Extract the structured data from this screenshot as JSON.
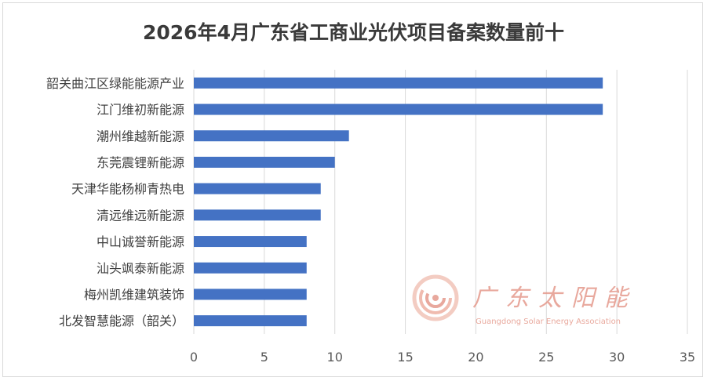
{
  "chart_data": {
    "type": "bar",
    "orientation": "horizontal",
    "title": "2026年4月广东省工商业光伏项目备案数量前十",
    "categories": [
      "韶关曲江区绿能能源产业",
      "江门维初新能源",
      "潮州维越新能源",
      "东莞震锂新能源",
      "天津华能杨柳青热电",
      "清远维远新能源",
      "中山诚誉新能源",
      "汕头飒泰新能源",
      "梅州凯维建筑装饰",
      "北发智慧能源（韶关）"
    ],
    "values": [
      29,
      29,
      11,
      10,
      9,
      9,
      8,
      8,
      8,
      8
    ],
    "xlim": [
      0,
      35
    ],
    "xticks": [
      0,
      5,
      10,
      15,
      20,
      25,
      30,
      35
    ],
    "grid": "vertical",
    "legend": "none",
    "bar_color": "#4472c4",
    "grid_color": "#d9d9d9"
  },
  "watermark": {
    "name": "广东太阳能",
    "subtitle": "Guangdong Solar Energy Association",
    "color": "#e59a8c"
  }
}
